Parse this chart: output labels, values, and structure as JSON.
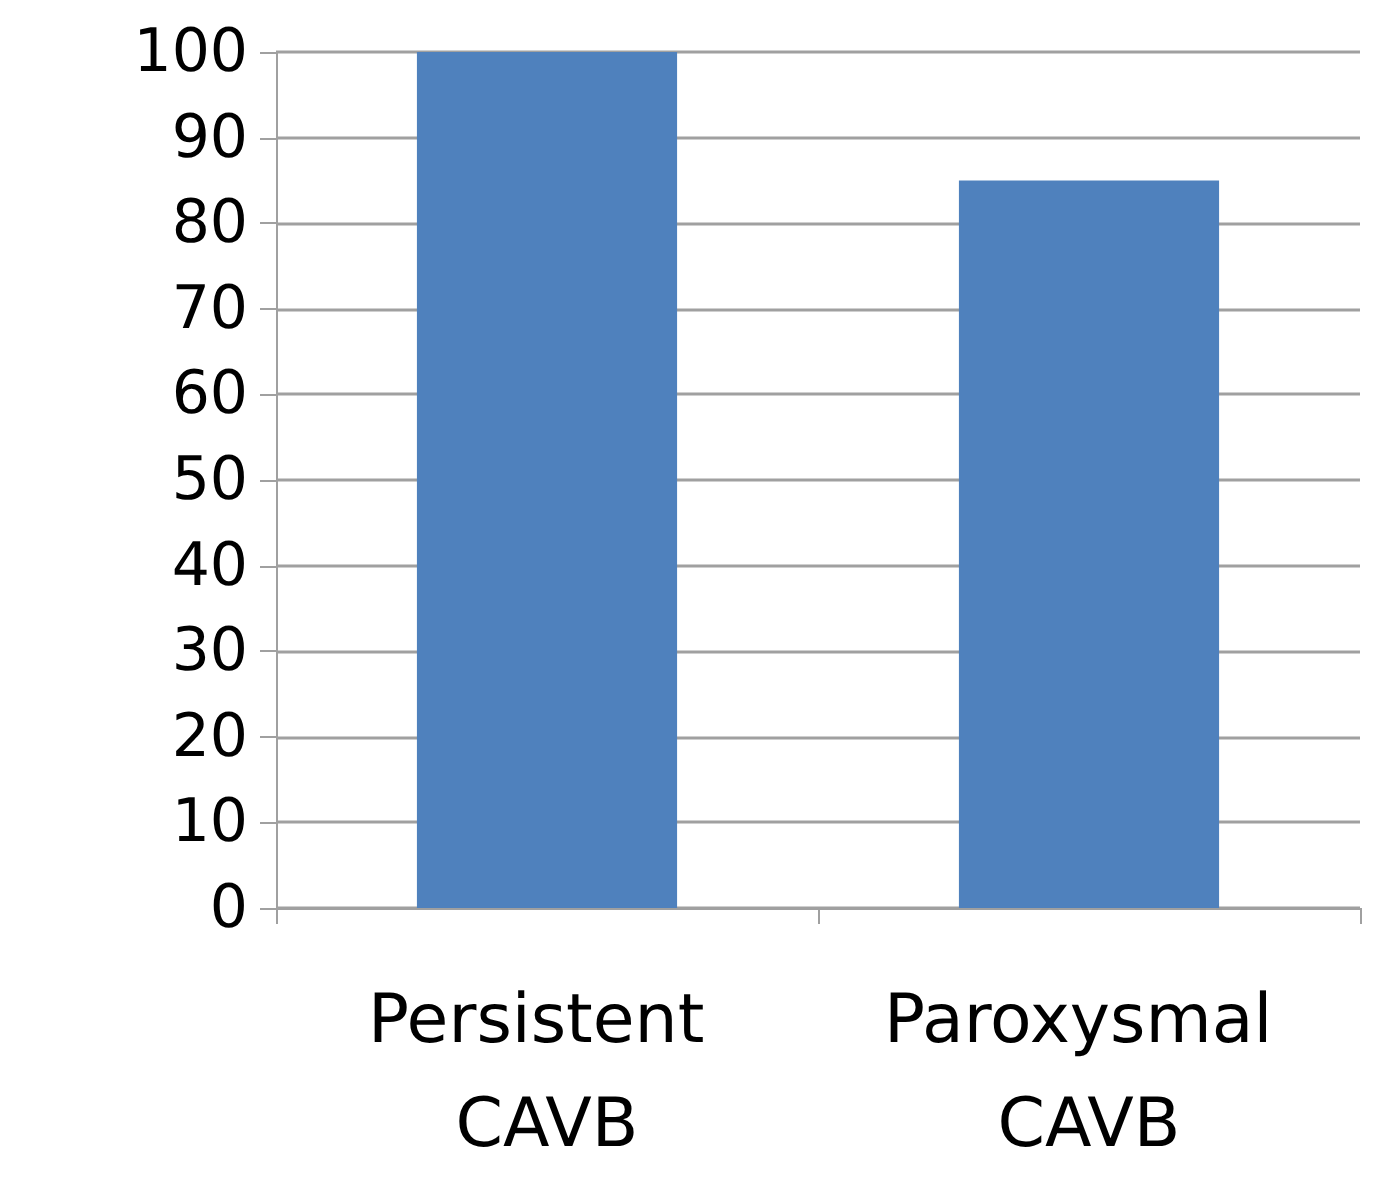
{
  "chart_data": {
    "type": "bar",
    "categories": [
      "Persistent CAVB",
      "Paroxysmal CAVB"
    ],
    "values": [
      100,
      85
    ],
    "color": "#4f81bd",
    "ylim": [
      0,
      100
    ],
    "yticks": [
      0,
      10,
      20,
      30,
      40,
      50,
      60,
      70,
      80,
      90,
      100
    ],
    "grid": "y"
  }
}
